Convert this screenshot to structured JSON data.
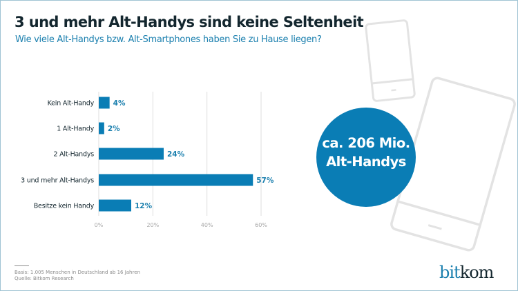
{
  "title": "3 und mehr Alt-Handys sind keine Seltenheit",
  "subtitle": "Wie viele Alt-Handys bzw. Alt-Smartphones haben Sie zu Hause liegen?",
  "callout": {
    "line1": "ca. 206 Mio.",
    "line2": "Alt-Handys"
  },
  "footer": {
    "basis": "Basis: 1.005 Menschen in Deutschland ab 16 Jahren",
    "source": "Quelle: Bitkom Research"
  },
  "logo": {
    "part1": "bit",
    "part2": "kom"
  },
  "colors": {
    "bar": "#0a7db5",
    "accent": "#1a7fae",
    "title": "#13262e",
    "grid": "#dddddd",
    "phone_outline": "#e3e3e3"
  },
  "icons": [
    "smartphone-outline-icon",
    "smartphone-outline-icon"
  ],
  "chart_data": {
    "type": "bar",
    "orientation": "horizontal",
    "categories": [
      "Kein Alt-Handy",
      "1 Alt-Handy",
      "2 Alt-Handys",
      "3 und mehr Alt-Handys",
      "Besitze kein Handy"
    ],
    "values": [
      4,
      2,
      24,
      57,
      12
    ],
    "value_labels": [
      "4%",
      "2%",
      "24%",
      "57%",
      "12%"
    ],
    "xlim": [
      0,
      60
    ],
    "xticks": [
      0,
      20,
      40,
      60
    ],
    "xtick_labels": [
      "0%",
      "20%",
      "40%",
      "60%"
    ],
    "grid": "vertical"
  }
}
